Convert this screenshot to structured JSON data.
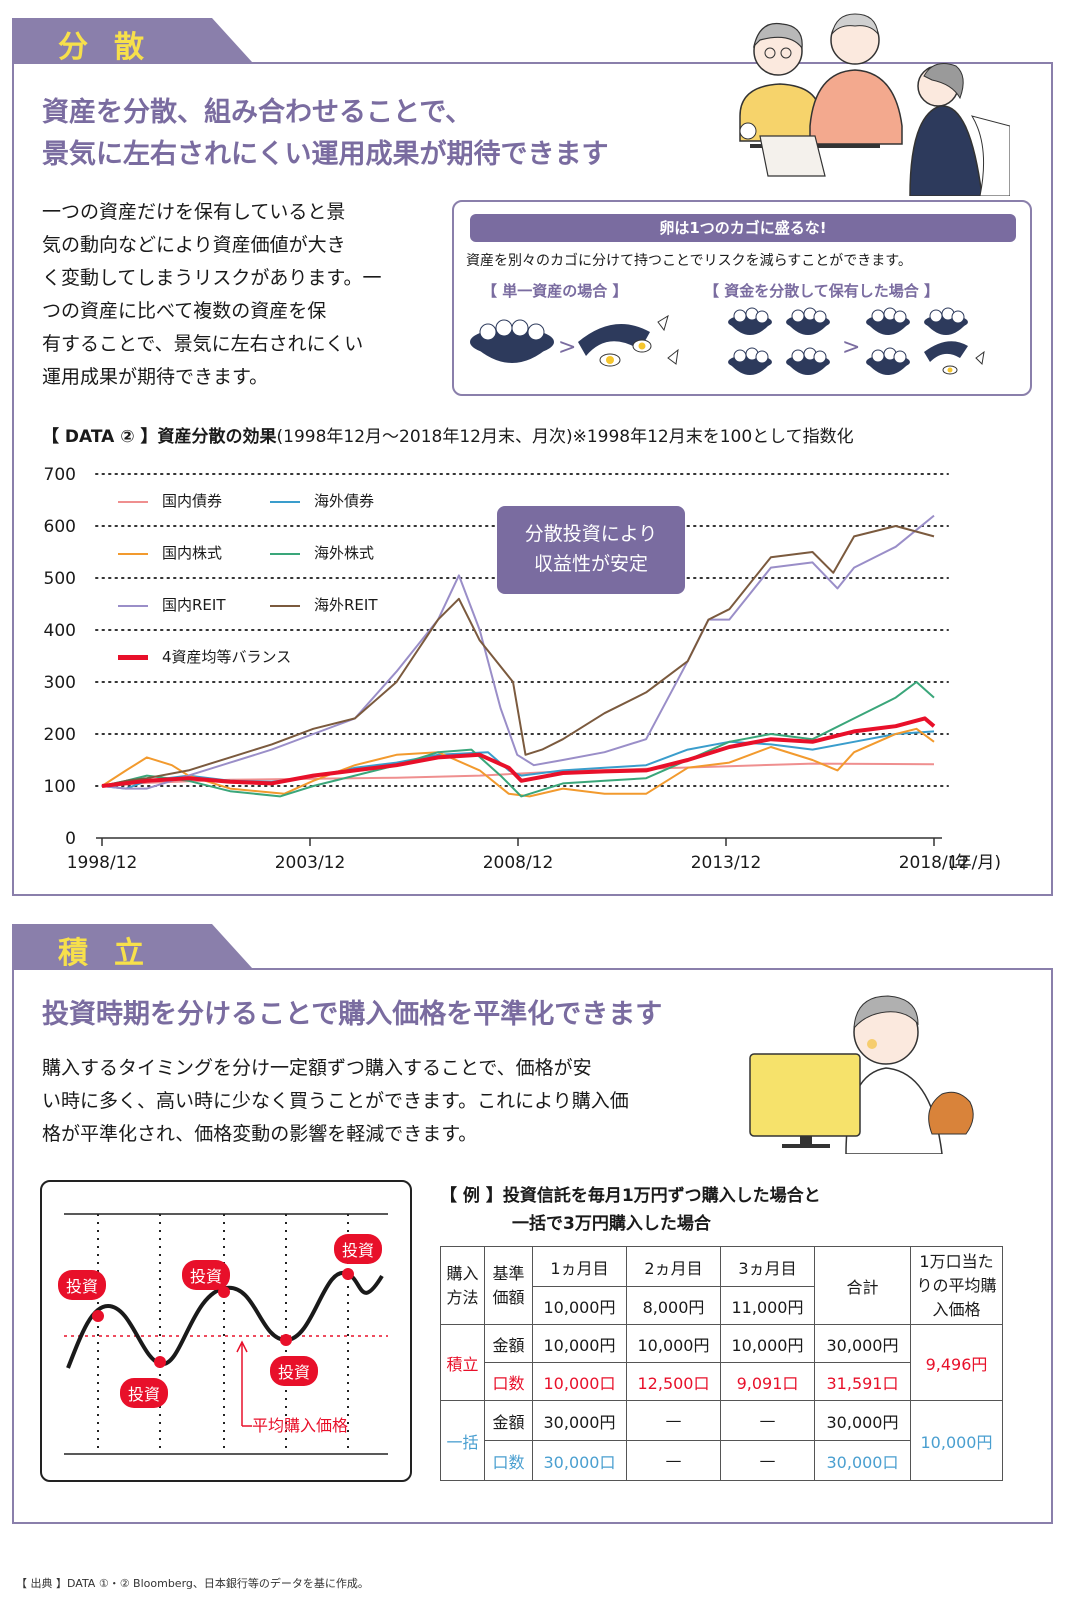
{
  "section1": {
    "title": "分散",
    "headline_line1": "資産を分散、組み合わせることで、",
    "headline_line2": "景気に左右されにくい運用成果が期待できます",
    "body": [
      "一つの資産だけを保有していると景",
      "気の動向などにより資産価値が大き",
      "く変動してしまうリスクがあります。一",
      "つの資産に比べて複数の資産を保",
      "有することで、景気に左右されにくい",
      "運用成果が期待できます。"
    ],
    "egg_box": {
      "title": "卵は1つのカゴに盛るな!",
      "subtitle": "資産を別々のカゴに分けて持つことでリスクを減らすことができます。",
      "case_single": "【 単一資産の場合 】",
      "case_diversified": "【 資金を分散して保有した場合 】"
    }
  },
  "chart_header": {
    "label": "【 DATA ② 】資産分散の効果",
    "period": "(1998年12月〜2018年12月末、月次)",
    "note": "※1998年12月末を100として指数化"
  },
  "callout": {
    "line1": "分散投資により",
    "line2": "収益性が安定"
  },
  "chart_data": {
    "type": "line",
    "title": "資産分散の効果",
    "xlabel": "(年/月)",
    "ylabel": "",
    "x_ticks": [
      "1998/12",
      "2003/12",
      "2008/12",
      "2013/12",
      "2018/12"
    ],
    "xlim": [
      1998.92,
      2018.92
    ],
    "y_ticks": [
      0,
      100,
      200,
      300,
      400,
      500,
      600,
      700
    ],
    "ylim": [
      0,
      700
    ],
    "grid": "horizontal-dotted",
    "legend_position": "top-left",
    "series": [
      {
        "name": "国内債券",
        "color": "#ef8f8f",
        "points": [
          [
            1998.92,
            100
          ],
          [
            2000,
            106
          ],
          [
            2002,
            112
          ],
          [
            2004,
            114
          ],
          [
            2006,
            116
          ],
          [
            2008,
            120
          ],
          [
            2010,
            128
          ],
          [
            2012,
            133
          ],
          [
            2014,
            138
          ],
          [
            2016,
            143
          ],
          [
            2018.92,
            142
          ]
        ]
      },
      {
        "name": "海外債券",
        "color": "#3a9dcc",
        "points": [
          [
            1998.92,
            100
          ],
          [
            1999.5,
            95
          ],
          [
            2000,
            110
          ],
          [
            2001,
            120
          ],
          [
            2002,
            110
          ],
          [
            2003,
            108
          ],
          [
            2004,
            118
          ],
          [
            2005,
            135
          ],
          [
            2006,
            145
          ],
          [
            2007,
            160
          ],
          [
            2008.2,
            165
          ],
          [
            2008.7,
            130
          ],
          [
            2009,
            120
          ],
          [
            2010,
            130
          ],
          [
            2011,
            135
          ],
          [
            2012,
            140
          ],
          [
            2013,
            170
          ],
          [
            2014,
            185
          ],
          [
            2015,
            180
          ],
          [
            2016,
            170
          ],
          [
            2017,
            185
          ],
          [
            2018,
            200
          ],
          [
            2018.92,
            205
          ]
        ]
      },
      {
        "name": "国内株式",
        "color": "#f29a2e",
        "points": [
          [
            1998.92,
            100
          ],
          [
            1999.5,
            130
          ],
          [
            2000,
            155
          ],
          [
            2000.6,
            140
          ],
          [
            2001,
            120
          ],
          [
            2002,
            95
          ],
          [
            2003.3,
            85
          ],
          [
            2004,
            110
          ],
          [
            2005,
            140
          ],
          [
            2006,
            160
          ],
          [
            2007,
            165
          ],
          [
            2008,
            130
          ],
          [
            2008.7,
            85
          ],
          [
            2009.2,
            80
          ],
          [
            2010,
            95
          ],
          [
            2011,
            85
          ],
          [
            2012,
            85
          ],
          [
            2013,
            135
          ],
          [
            2014,
            145
          ],
          [
            2015,
            175
          ],
          [
            2016,
            150
          ],
          [
            2016.6,
            130
          ],
          [
            2017,
            165
          ],
          [
            2018,
            200
          ],
          [
            2018.5,
            210
          ],
          [
            2018.92,
            185
          ]
        ]
      },
      {
        "name": "海外株式",
        "color": "#3aa67a",
        "points": [
          [
            1998.92,
            100
          ],
          [
            1999.5,
            110
          ],
          [
            2000,
            120
          ],
          [
            2001,
            110
          ],
          [
            2002,
            90
          ],
          [
            2003.2,
            80
          ],
          [
            2004,
            100
          ],
          [
            2005,
            120
          ],
          [
            2006,
            140
          ],
          [
            2007,
            165
          ],
          [
            2007.8,
            170
          ],
          [
            2008.5,
            120
          ],
          [
            2009,
            80
          ],
          [
            2010,
            105
          ],
          [
            2011,
            110
          ],
          [
            2012,
            115
          ],
          [
            2013,
            150
          ],
          [
            2014,
            185
          ],
          [
            2015,
            200
          ],
          [
            2016,
            190
          ],
          [
            2017,
            230
          ],
          [
            2018,
            270
          ],
          [
            2018.5,
            300
          ],
          [
            2018.92,
            270
          ]
        ]
      },
      {
        "name": "国内REIT",
        "color": "#9a8ec8",
        "points": [
          [
            1998.92,
            100
          ],
          [
            1999.5,
            95
          ],
          [
            2000,
            95
          ],
          [
            2001,
            120
          ],
          [
            2002,
            145
          ],
          [
            2003,
            170
          ],
          [
            2004,
            200
          ],
          [
            2005,
            230
          ],
          [
            2006,
            320
          ],
          [
            2007,
            420
          ],
          [
            2007.5,
            505
          ],
          [
            2008,
            400
          ],
          [
            2008.5,
            250
          ],
          [
            2008.9,
            160
          ],
          [
            2009.3,
            140
          ],
          [
            2010,
            150
          ],
          [
            2011,
            165
          ],
          [
            2012,
            190
          ],
          [
            2013,
            340
          ],
          [
            2013.5,
            420
          ],
          [
            2014,
            420
          ],
          [
            2015,
            520
          ],
          [
            2016,
            530
          ],
          [
            2016.6,
            480
          ],
          [
            2017,
            520
          ],
          [
            2018,
            560
          ],
          [
            2018.92,
            620
          ]
        ]
      },
      {
        "name": "海外REIT",
        "color": "#7b5a3e",
        "points": [
          [
            1998.92,
            100
          ],
          [
            1999.5,
            110
          ],
          [
            2000,
            115
          ],
          [
            2001,
            130
          ],
          [
            2002,
            155
          ],
          [
            2003,
            180
          ],
          [
            2004,
            210
          ],
          [
            2005,
            230
          ],
          [
            2006,
            300
          ],
          [
            2007,
            420
          ],
          [
            2007.5,
            460
          ],
          [
            2008,
            380
          ],
          [
            2008.8,
            300
          ],
          [
            2009.1,
            160
          ],
          [
            2009.5,
            170
          ],
          [
            2010,
            190
          ],
          [
            2011,
            240
          ],
          [
            2012,
            280
          ],
          [
            2013,
            340
          ],
          [
            2013.5,
            420
          ],
          [
            2014,
            440
          ],
          [
            2015,
            540
          ],
          [
            2016,
            550
          ],
          [
            2016.5,
            510
          ],
          [
            2017,
            580
          ],
          [
            2018,
            600
          ],
          [
            2018.92,
            580
          ]
        ]
      },
      {
        "name": "4資産均等バランス",
        "color": "#e8102a",
        "bold": true,
        "points": [
          [
            1998.92,
            100
          ],
          [
            2000,
            110
          ],
          [
            2001,
            115
          ],
          [
            2002,
            108
          ],
          [
            2003,
            105
          ],
          [
            2004,
            120
          ],
          [
            2005,
            130
          ],
          [
            2006,
            140
          ],
          [
            2007,
            155
          ],
          [
            2008,
            160
          ],
          [
            2008.7,
            135
          ],
          [
            2009,
            110
          ],
          [
            2010,
            125
          ],
          [
            2011,
            128
          ],
          [
            2012,
            130
          ],
          [
            2013,
            150
          ],
          [
            2014,
            175
          ],
          [
            2015,
            190
          ],
          [
            2016,
            185
          ],
          [
            2017,
            205
          ],
          [
            2018,
            215
          ],
          [
            2018.7,
            230
          ],
          [
            2018.92,
            215
          ]
        ]
      }
    ]
  },
  "section2": {
    "title": "積立",
    "headline": "投資時期を分けることで購入価格を平準化できます",
    "body": [
      "購入するタイミングを分け一定額ずつ購入することで、価格が安",
      "い時に多く、高い時に少なく買うことができます。これにより購入価",
      "格が平準化され、価格変動の影響を軽減できます。"
    ],
    "diagram": {
      "invest_label": "投資",
      "avg_label": "平均購入価格"
    },
    "example_title_line1": "【 例 】投資信託を毎月1万円ずつ購入した場合と",
    "example_title_line2": "一括で3万円購入した場合"
  },
  "table": {
    "h_method": "購入方法",
    "h_base": "基準価額",
    "h_m1": "1ヵ月目",
    "h_m2": "2ヵ月目",
    "h_m3": "3ヵ月目",
    "h_total": "合計",
    "h_avg": "1万口当たりの平均購入価格",
    "base_prices": [
      "10,000円",
      "8,000円",
      "11,000円"
    ],
    "tsumitate": {
      "label": "積立",
      "amount_label": "金額",
      "amounts": [
        "10,000円",
        "10,000円",
        "10,000円",
        "30,000円"
      ],
      "units_label": "口数",
      "units": [
        "10,000口",
        "12,500口",
        "9,091口",
        "31,591口"
      ],
      "avg": "9,496円"
    },
    "lump": {
      "label": "一括",
      "amount_label": "金額",
      "amounts": [
        "30,000円",
        "—",
        "—",
        "30,000円"
      ],
      "units_label": "口数",
      "units": [
        "30,000口",
        "—",
        "—",
        "30,000口"
      ],
      "avg": "10,000円"
    }
  },
  "footnote": "【 出典 】DATA ①・② Bloomberg、日本銀行等のデータを基に作成。"
}
